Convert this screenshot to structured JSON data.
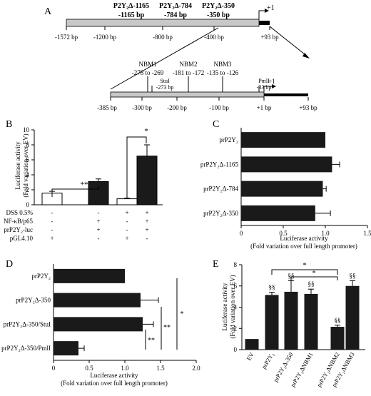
{
  "panels": {
    "A": {
      "letter": "A",
      "top_labels": [
        {
          "line1": "P2Y₂Δ-1165",
          "line2": "-1165 bp"
        },
        {
          "line1": "P2Y₂Δ-784",
          "line2": "-784 bp"
        },
        {
          "line1": "P2Y₂Δ-350",
          "line2": "-350 bp"
        }
      ],
      "tss_label": "+1",
      "top_axis": [
        "-1572 bp",
        "-1200 bp",
        "-800 bp",
        "-400 bp",
        "+93 bp"
      ],
      "nbm": [
        {
          "name": "NBM1",
          "range": "-278 to -269"
        },
        {
          "name": "NBM2",
          "range": "-181 to -172"
        },
        {
          "name": "NBM3",
          "range": "-135 to -126"
        }
      ],
      "stui": {
        "name": "StuI",
        "pos": "-273 bp"
      },
      "pmli": {
        "name": "PmlI",
        "pos": "-33 bp"
      },
      "zoom_tss_label": "+1",
      "zoom_axis": [
        "-385 bp",
        "-300 bp",
        "-200 bp",
        "-100 bp",
        "+1 bp",
        "+93 bp"
      ]
    },
    "B": {
      "letter": "B"
    },
    "C": {
      "letter": "C"
    },
    "D": {
      "letter": "D"
    },
    "E": {
      "letter": "E"
    }
  },
  "chart_data": [
    {
      "panel": "B",
      "type": "bar",
      "ylabel": "Luciferase activity",
      "ylabel2": "(Fold variation over EV)",
      "ylim": [
        0,
        10
      ],
      "yticks": [
        0,
        2,
        4,
        6,
        8,
        10
      ],
      "values": [
        1.55,
        3.1,
        0.8,
        6.5
      ],
      "errors": [
        0.25,
        0.35,
        0.08,
        1.5
      ],
      "fills": [
        "#ffffff",
        "#1a1a1a",
        "#ffffff",
        "#1a1a1a"
      ],
      "condition_rows": [
        {
          "label": "DSS 0.5%",
          "marks": [
            "-",
            "-",
            "+",
            "+"
          ]
        },
        {
          "label": "NF-κB/p65",
          "marks": [
            "-",
            "+",
            "-",
            "+"
          ]
        },
        {
          "label": "prP2Y₂-luc",
          "marks": [
            "-",
            "+",
            "-",
            "+"
          ]
        },
        {
          "label": "pGL4.10",
          "marks": [
            "+",
            "-",
            "+",
            "-"
          ]
        }
      ],
      "significance": [
        "**",
        "*"
      ]
    },
    {
      "panel": "C",
      "type": "bar",
      "orientation": "horizontal",
      "categories": [
        "prP2Y₂",
        "prP2Y₂Δ-1165",
        "prP2Y₂Δ-784",
        "prP2Y₂Δ-350"
      ],
      "values": [
        1.0,
        1.08,
        0.97,
        0.88
      ],
      "errors": [
        0.0,
        0.09,
        0.04,
        0.18
      ],
      "xlim": [
        0,
        1.5
      ],
      "xticks": [
        "0",
        "0.5",
        "1.0",
        "1.5"
      ],
      "xlabel": "Luciferase activity",
      "xlabel2": "(Fold variation over full length promoter)"
    },
    {
      "panel": "D",
      "type": "bar",
      "orientation": "horizontal",
      "categories": [
        "prP2Y₂",
        "prP2Y₂Δ-350",
        "prP2Y₂Δ-350/StuI",
        "prP2Y₂Δ-350/PmlI"
      ],
      "values": [
        1.0,
        1.22,
        1.25,
        0.35
      ],
      "errors": [
        0.0,
        0.25,
        0.15,
        0.08
      ],
      "xlim": [
        0,
        2.0
      ],
      "xticks": [
        "0",
        "0.5",
        "1.0",
        "1.5",
        "2.0"
      ],
      "xlabel": "Luciferase activity",
      "xlabel2": "(Fold variation over full length promoter)",
      "significance": [
        "**",
        "**",
        "*"
      ]
    },
    {
      "panel": "E",
      "type": "bar",
      "categories": [
        "EV",
        "prP2Y₂",
        "prP2Y₂Δ-350",
        "prP2Y₂ΔNBM1",
        "prP2Y₂ΔNBM2",
        "prP2Y₂ΔNBM3"
      ],
      "values": [
        1.0,
        5.15,
        5.45,
        5.25,
        2.15,
        6.0
      ],
      "errors": [
        0.0,
        0.25,
        1.05,
        0.45,
        0.15,
        0.5
      ],
      "ylim": [
        0,
        8
      ],
      "yticks": [
        0,
        2,
        4,
        6,
        8
      ],
      "ylabel": "Luciferase activity",
      "ylabel2": "(Fold variation over EV)",
      "bar_labels": [
        "",
        "§§",
        "§§",
        "§§",
        "§§",
        "§§"
      ],
      "significance": [
        "*",
        "*"
      ]
    }
  ]
}
